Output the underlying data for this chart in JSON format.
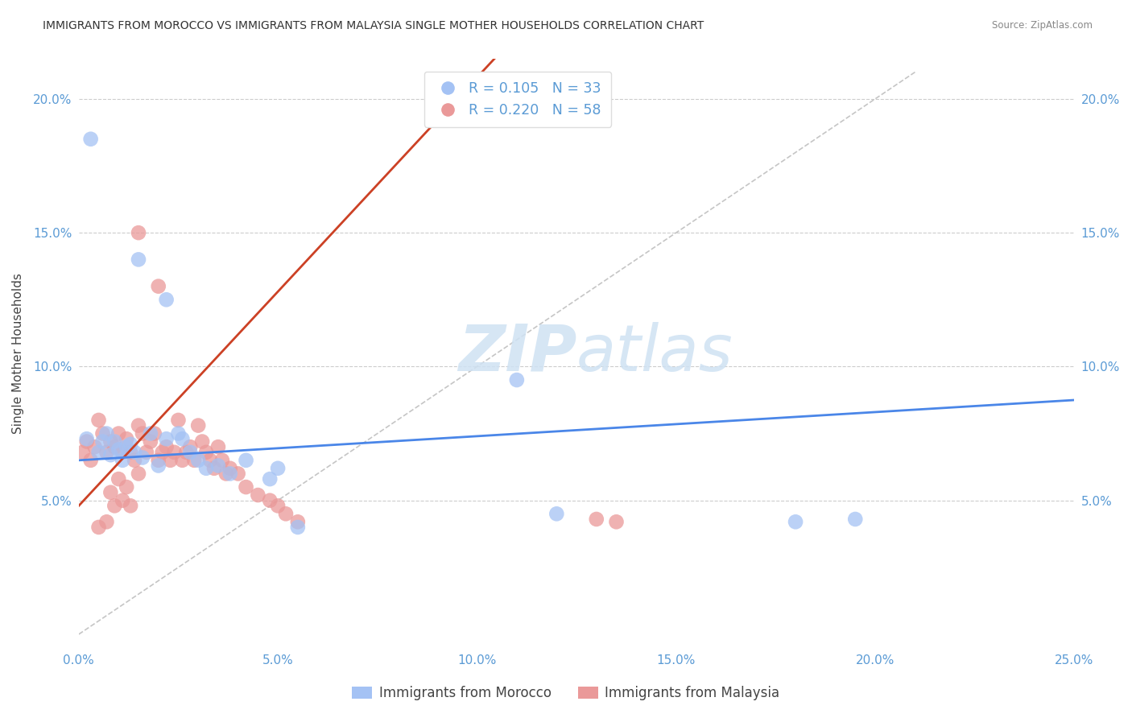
{
  "title": "IMMIGRANTS FROM MOROCCO VS IMMIGRANTS FROM MALAYSIA SINGLE MOTHER HOUSEHOLDS CORRELATION CHART",
  "source": "Source: ZipAtlas.com",
  "ylabel": "Single Mother Households",
  "xlim": [
    0.0,
    0.25
  ],
  "ylim": [
    -0.005,
    0.215
  ],
  "yticks": [
    0.05,
    0.1,
    0.15,
    0.2
  ],
  "xticks": [
    0.0,
    0.05,
    0.1,
    0.15,
    0.2,
    0.25
  ],
  "xticklabels": [
    "0.0%",
    "5.0%",
    "10.0%",
    "15.0%",
    "20.0%",
    "25.0%"
  ],
  "yticklabels": [
    "5.0%",
    "10.0%",
    "15.0%",
    "20.0%"
  ],
  "morocco_R": 0.105,
  "morocco_N": 33,
  "malaysia_R": 0.22,
  "malaysia_N": 58,
  "morocco_color": "#a4c2f4",
  "malaysia_color": "#ea9999",
  "morocco_color_dark": "#6d9eeb",
  "malaysia_color_dark": "#e06666",
  "trendline_dashed_color": "#b7b7b7",
  "morocco_line_color": "#4a86e8",
  "malaysia_line_color": "#cc4125",
  "watermark_color": "#cfe2f3",
  "morocco_points_x": [
    0.002,
    0.003,
    0.005,
    0.006,
    0.007,
    0.008,
    0.009,
    0.01,
    0.011,
    0.012,
    0.013,
    0.014,
    0.015,
    0.016,
    0.018,
    0.02,
    0.022,
    0.025,
    0.026,
    0.028,
    0.03,
    0.032,
    0.035,
    0.038,
    0.042,
    0.048,
    0.05,
    0.055,
    0.11,
    0.12,
    0.18,
    0.195,
    0.022
  ],
  "morocco_points_y": [
    0.073,
    0.185,
    0.068,
    0.072,
    0.075,
    0.067,
    0.072,
    0.069,
    0.065,
    0.07,
    0.071,
    0.068,
    0.14,
    0.066,
    0.075,
    0.063,
    0.073,
    0.075,
    0.073,
    0.068,
    0.065,
    0.062,
    0.063,
    0.06,
    0.065,
    0.058,
    0.062,
    0.04,
    0.095,
    0.045,
    0.042,
    0.043,
    0.125
  ],
  "malaysia_points_x": [
    0.001,
    0.002,
    0.003,
    0.004,
    0.005,
    0.005,
    0.006,
    0.007,
    0.007,
    0.008,
    0.008,
    0.009,
    0.009,
    0.01,
    0.01,
    0.011,
    0.011,
    0.012,
    0.012,
    0.013,
    0.013,
    0.014,
    0.015,
    0.015,
    0.016,
    0.017,
    0.018,
    0.019,
    0.02,
    0.021,
    0.022,
    0.023,
    0.024,
    0.025,
    0.026,
    0.027,
    0.028,
    0.029,
    0.03,
    0.031,
    0.032,
    0.033,
    0.034,
    0.035,
    0.036,
    0.037,
    0.038,
    0.04,
    0.042,
    0.045,
    0.048,
    0.05,
    0.052,
    0.055,
    0.13,
    0.135,
    0.015,
    0.02
  ],
  "malaysia_points_y": [
    0.068,
    0.072,
    0.065,
    0.07,
    0.08,
    0.04,
    0.075,
    0.068,
    0.042,
    0.072,
    0.053,
    0.07,
    0.048,
    0.075,
    0.058,
    0.068,
    0.05,
    0.073,
    0.055,
    0.068,
    0.048,
    0.065,
    0.078,
    0.06,
    0.075,
    0.068,
    0.072,
    0.075,
    0.065,
    0.068,
    0.07,
    0.065,
    0.068,
    0.08,
    0.065,
    0.068,
    0.07,
    0.065,
    0.078,
    0.072,
    0.068,
    0.065,
    0.062,
    0.07,
    0.065,
    0.06,
    0.062,
    0.06,
    0.055,
    0.052,
    0.05,
    0.048,
    0.045,
    0.042,
    0.043,
    0.042,
    0.15,
    0.13
  ]
}
